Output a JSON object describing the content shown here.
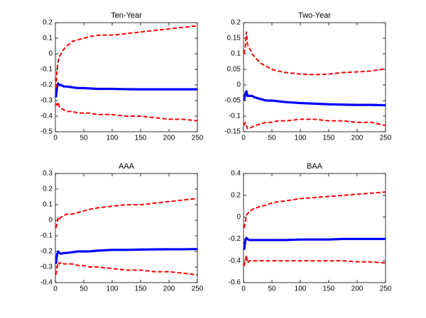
{
  "chart_data": [
    {
      "type": "line",
      "title": "Ten-Year",
      "x": [
        1,
        3,
        5,
        7,
        10,
        15,
        20,
        30,
        40,
        50,
        60,
        75,
        100,
        125,
        150,
        175,
        200,
        225,
        250
      ],
      "xlim": [
        0,
        250
      ],
      "xticks": [
        0,
        50,
        100,
        150,
        200,
        250
      ],
      "ylim": [
        -0.5,
        0.2
      ],
      "yticks": [
        -0.5,
        -0.4,
        -0.3,
        -0.2,
        -0.1,
        0,
        0.1,
        0.2
      ],
      "series": [
        {
          "color": "#0000ff",
          "style": "solid",
          "values": [
            -0.28,
            -0.21,
            -0.19,
            -0.2,
            -0.2,
            -0.21,
            -0.21,
            -0.215,
            -0.22,
            -0.22,
            -0.222,
            -0.225,
            -0.225,
            -0.227,
            -0.228,
            -0.228,
            -0.228,
            -0.228,
            -0.228
          ]
        },
        {
          "color": "#ff0000",
          "style": "dashed",
          "values": [
            -0.22,
            -0.1,
            -0.05,
            -0.02,
            0.0,
            0.03,
            0.05,
            0.08,
            0.09,
            0.1,
            0.11,
            0.12,
            0.12,
            0.13,
            0.14,
            0.15,
            0.16,
            0.17,
            0.18
          ]
        },
        {
          "color": "#ff0000",
          "style": "dashed",
          "values": [
            -0.32,
            -0.33,
            -0.31,
            -0.34,
            -0.35,
            -0.36,
            -0.37,
            -0.37,
            -0.38,
            -0.38,
            -0.38,
            -0.39,
            -0.39,
            -0.4,
            -0.4,
            -0.41,
            -0.42,
            -0.42,
            -0.43
          ]
        }
      ]
    },
    {
      "type": "line",
      "title": "Two-Year",
      "x": [
        1,
        3,
        5,
        7,
        10,
        15,
        20,
        30,
        40,
        50,
        60,
        75,
        100,
        125,
        150,
        175,
        200,
        225,
        250
      ],
      "xlim": [
        0,
        250
      ],
      "xticks": [
        0,
        50,
        100,
        150,
        200,
        250
      ],
      "ylim": [
        -0.15,
        0.2
      ],
      "yticks": [
        -0.15,
        -0.1,
        -0.05,
        0,
        0.05,
        0.1,
        0.15,
        0.2
      ],
      "series": [
        {
          "color": "#0000ff",
          "style": "solid",
          "values": [
            -0.05,
            -0.03,
            -0.02,
            -0.035,
            -0.035,
            -0.035,
            -0.04,
            -0.045,
            -0.05,
            -0.05,
            -0.052,
            -0.055,
            -0.058,
            -0.06,
            -0.062,
            -0.063,
            -0.064,
            -0.064,
            -0.065
          ]
        },
        {
          "color": "#ff0000",
          "style": "dashed",
          "values": [
            0.1,
            0.12,
            0.17,
            0.13,
            0.12,
            0.1,
            0.09,
            0.07,
            0.06,
            0.05,
            0.045,
            0.04,
            0.035,
            0.033,
            0.035,
            0.04,
            0.042,
            0.045,
            0.052
          ]
        },
        {
          "color": "#ff0000",
          "style": "dashed",
          "values": [
            -0.13,
            -0.12,
            -0.13,
            -0.14,
            -0.14,
            -0.135,
            -0.13,
            -0.125,
            -0.12,
            -0.12,
            -0.115,
            -0.115,
            -0.11,
            -0.11,
            -0.115,
            -0.115,
            -0.12,
            -0.12,
            -0.13
          ]
        }
      ]
    },
    {
      "type": "line",
      "title": "AAA",
      "x": [
        1,
        3,
        5,
        7,
        10,
        15,
        20,
        30,
        40,
        50,
        60,
        75,
        100,
        125,
        150,
        175,
        200,
        225,
        250
      ],
      "xlim": [
        0,
        250
      ],
      "xticks": [
        0,
        50,
        100,
        150,
        200,
        250
      ],
      "ylim": [
        -0.4,
        0.3
      ],
      "yticks": [
        -0.4,
        -0.3,
        -0.2,
        -0.1,
        0,
        0.1,
        0.2,
        0.3
      ],
      "series": [
        {
          "color": "#0000ff",
          "style": "solid",
          "values": [
            -0.28,
            -0.22,
            -0.2,
            -0.21,
            -0.215,
            -0.21,
            -0.21,
            -0.205,
            -0.2,
            -0.2,
            -0.2,
            -0.195,
            -0.19,
            -0.19,
            -0.188,
            -0.187,
            -0.186,
            -0.186,
            -0.185
          ]
        },
        {
          "color": "#ff0000",
          "style": "dashed",
          "values": [
            -0.05,
            -0.02,
            0.02,
            0.01,
            0.02,
            0.03,
            0.04,
            0.04,
            0.05,
            0.06,
            0.07,
            0.08,
            0.09,
            0.1,
            0.1,
            0.11,
            0.12,
            0.13,
            0.14
          ]
        },
        {
          "color": "#ff0000",
          "style": "dashed",
          "values": [
            -0.35,
            -0.3,
            -0.27,
            -0.28,
            -0.27,
            -0.28,
            -0.28,
            -0.28,
            -0.29,
            -0.29,
            -0.3,
            -0.3,
            -0.31,
            -0.32,
            -0.32,
            -0.33,
            -0.33,
            -0.34,
            -0.35
          ]
        }
      ]
    },
    {
      "type": "line",
      "title": "BAA",
      "x": [
        1,
        3,
        5,
        7,
        10,
        15,
        20,
        30,
        40,
        50,
        60,
        75,
        100,
        125,
        150,
        175,
        200,
        225,
        250
      ],
      "xlim": [
        0,
        250
      ],
      "xticks": [
        0,
        50,
        100,
        150,
        200,
        250
      ],
      "ylim": [
        -0.6,
        0.4
      ],
      "yticks": [
        -0.6,
        -0.4,
        -0.2,
        0,
        0.2,
        0.4
      ],
      "series": [
        {
          "color": "#0000ff",
          "style": "solid",
          "values": [
            -0.3,
            -0.22,
            -0.19,
            -0.2,
            -0.21,
            -0.21,
            -0.21,
            -0.21,
            -0.21,
            -0.21,
            -0.21,
            -0.21,
            -0.205,
            -0.205,
            -0.205,
            -0.2,
            -0.2,
            -0.2,
            -0.2
          ]
        },
        {
          "color": "#ff0000",
          "style": "dashed",
          "values": [
            -0.1,
            -0.05,
            0.02,
            0.03,
            0.05,
            0.07,
            0.08,
            0.1,
            0.11,
            0.13,
            0.14,
            0.15,
            0.17,
            0.18,
            0.19,
            0.2,
            0.21,
            0.22,
            0.23
          ]
        },
        {
          "color": "#ff0000",
          "style": "dashed",
          "values": [
            -0.45,
            -0.4,
            -0.35,
            -0.42,
            -0.4,
            -0.4,
            -0.4,
            -0.4,
            -0.4,
            -0.4,
            -0.4,
            -0.4,
            -0.4,
            -0.4,
            -0.4,
            -0.4,
            -0.41,
            -0.41,
            -0.42
          ]
        }
      ]
    }
  ]
}
